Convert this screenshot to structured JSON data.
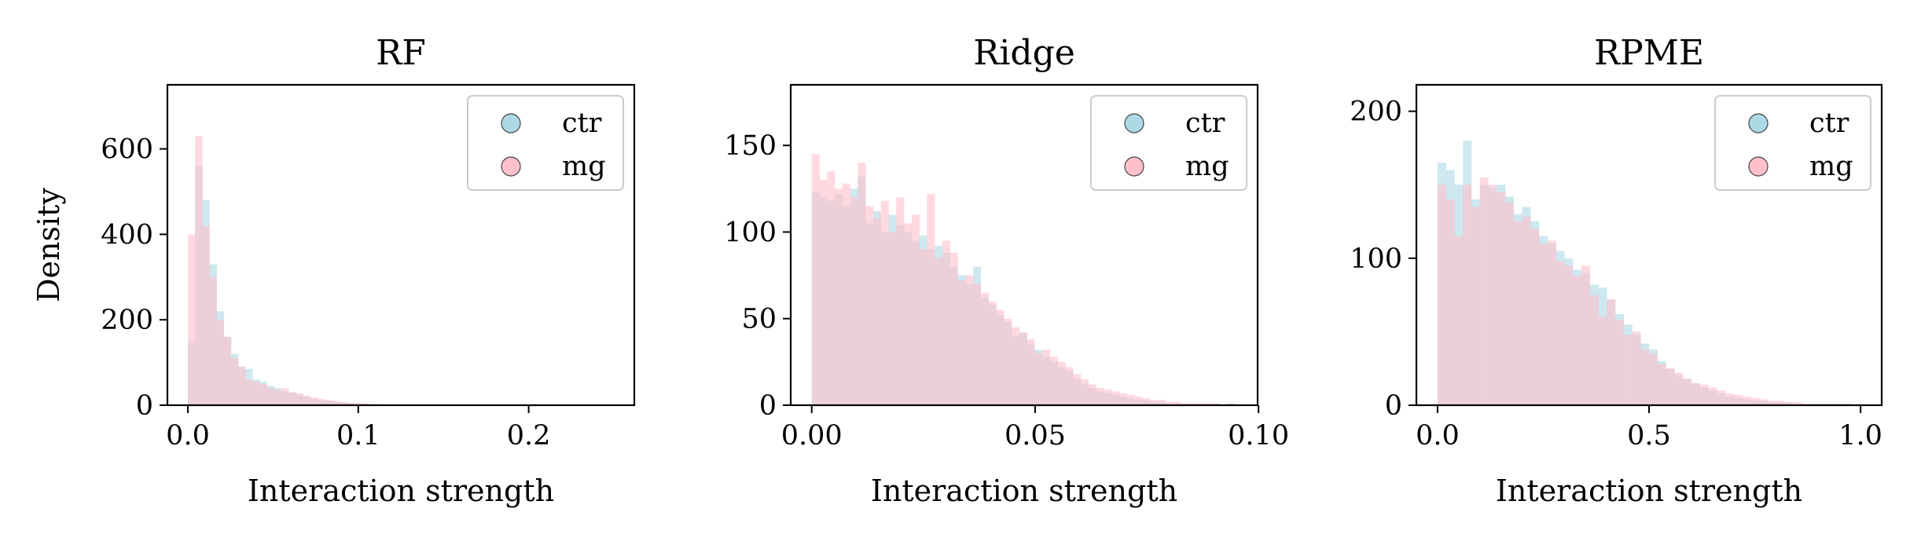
{
  "chart_data": [
    {
      "type": "histogram",
      "title": "RF",
      "xlabel": "Interaction strength",
      "ylabel": "Density",
      "xlim": [
        -0.012,
        0.262
      ],
      "ylim": [
        0,
        750
      ],
      "xticks": [
        0.0,
        0.1,
        0.2
      ],
      "xtick_labels": [
        "0.0",
        "0.1",
        "0.2"
      ],
      "yticks": [
        0,
        200,
        400,
        600
      ],
      "ytick_labels": [
        "0",
        "200",
        "400",
        "600"
      ],
      "grid": false,
      "legend": "top-right",
      "bin_start": 0.0,
      "bin_width": 0.00422,
      "series": [
        {
          "name": "ctr",
          "color": "#add8e6",
          "values": [
            150,
            560,
            480,
            330,
            220,
            160,
            120,
            90,
            85,
            60,
            55,
            45,
            40,
            32,
            30,
            25,
            20,
            15,
            12,
            10,
            8,
            6,
            5,
            4,
            3,
            2,
            2,
            1,
            1,
            1
          ]
        },
        {
          "name": "mg",
          "color": "#ffc0cb",
          "values": [
            400,
            630,
            420,
            300,
            200,
            160,
            110,
            90,
            60,
            55,
            50,
            40,
            35,
            40,
            30,
            28,
            22,
            18,
            15,
            12,
            10,
            8,
            6,
            5,
            4,
            3,
            2,
            2,
            1,
            1
          ]
        }
      ]
    },
    {
      "type": "histogram",
      "title": "Ridge",
      "xlabel": "Interaction strength",
      "ylabel": "",
      "xlim": [
        -0.0047,
        0.0998
      ],
      "ylim": [
        0,
        185
      ],
      "xticks": [
        0.0,
        0.05,
        0.1
      ],
      "xtick_labels": [
        "0.00",
        "0.05",
        "0.10"
      ],
      "yticks": [
        0,
        50,
        100,
        150
      ],
      "ytick_labels": [
        "0",
        "50",
        "100",
        "150"
      ],
      "grid": false,
      "legend": "top-right",
      "bin_start": 0.0,
      "bin_width": 0.00172,
      "series": [
        {
          "name": "ctr",
          "color": "#add8e6",
          "values": [
            123,
            120,
            118,
            122,
            115,
            125,
            132,
            105,
            112,
            100,
            110,
            104,
            100,
            95,
            98,
            90,
            92,
            88,
            80,
            75,
            70,
            80,
            62,
            58,
            52,
            48,
            40,
            42,
            35,
            32,
            28,
            25,
            22,
            20,
            15,
            12,
            10,
            8,
            7,
            6,
            5,
            4,
            3,
            3,
            2,
            2,
            1,
            1,
            1,
            1,
            1,
            1,
            1,
            0,
            1
          ]
        },
        {
          "name": "mg",
          "color": "#ffc0cb",
          "values": [
            145,
            130,
            135,
            125,
            128,
            120,
            140,
            115,
            108,
            118,
            100,
            120,
            105,
            110,
            90,
            122,
            85,
            95,
            88,
            72,
            75,
            70,
            65,
            60,
            55,
            50,
            45,
            42,
            38,
            30,
            32,
            28,
            25,
            22,
            18,
            15,
            12,
            10,
            9,
            8,
            7,
            6,
            5,
            4,
            3,
            3,
            2,
            2,
            1,
            1,
            1,
            1,
            1,
            0,
            1
          ]
        }
      ]
    },
    {
      "type": "histogram",
      "title": "RPME",
      "xlabel": "Interaction strength",
      "ylabel": "",
      "xlim": [
        -0.05,
        1.05
      ],
      "ylim": [
        0,
        218
      ],
      "xticks": [
        0.0,
        0.5,
        1.0
      ],
      "xtick_labels": [
        "0.0",
        "0.5",
        "1.0"
      ],
      "yticks": [
        0,
        100,
        200
      ],
      "ytick_labels": [
        "0",
        "100",
        "200"
      ],
      "grid": false,
      "legend": "top-right",
      "bin_start": 0.0,
      "bin_width": 0.02,
      "series": [
        {
          "name": "ctr",
          "color": "#add8e6",
          "values": [
            165,
            160,
            150,
            180,
            140,
            150,
            148,
            150,
            142,
            130,
            135,
            125,
            115,
            110,
            105,
            100,
            92,
            90,
            82,
            80,
            72,
            62,
            55,
            48,
            42,
            38,
            30,
            25,
            20,
            18,
            15,
            12,
            10,
            8,
            6,
            5,
            4,
            3,
            3,
            2,
            2,
            2,
            1,
            1,
            1,
            1,
            1,
            0,
            1,
            0
          ]
        },
        {
          "name": "mg",
          "color": "#ffc0cb",
          "values": [
            150,
            140,
            115,
            150,
            135,
            155,
            150,
            145,
            138,
            125,
            128,
            120,
            110,
            112,
            98,
            95,
            88,
            95,
            75,
            60,
            72,
            58,
            48,
            50,
            38,
            35,
            28,
            25,
            22,
            18,
            15,
            14,
            12,
            10,
            8,
            7,
            6,
            5,
            4,
            3,
            3,
            2,
            2,
            1,
            1,
            1,
            1,
            1,
            0,
            0
          ]
        }
      ]
    }
  ]
}
